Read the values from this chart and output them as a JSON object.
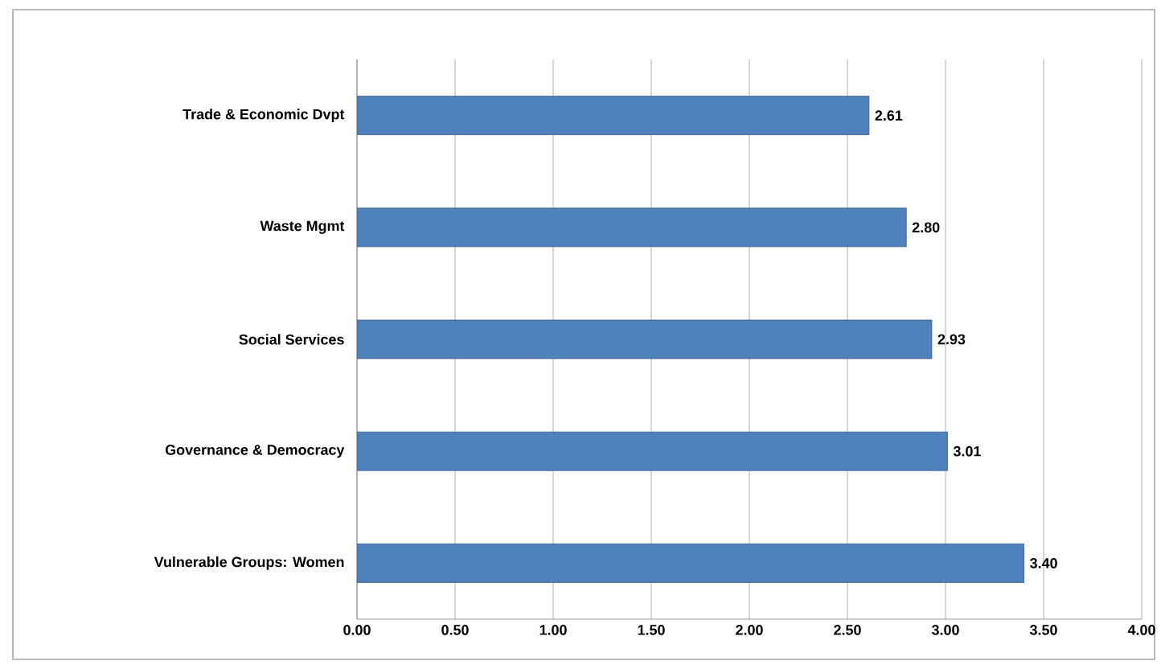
{
  "chart_data": {
    "type": "bar",
    "orientation": "horizontal",
    "categories": [
      "Trade & Economic Dvpt",
      "Waste Mgmt",
      "Social Services",
      "Governance & Democracy",
      "Vulnerable Groups: Women"
    ],
    "values": [
      2.61,
      2.8,
      2.93,
      3.01,
      3.4
    ],
    "value_labels": [
      "2.61",
      "2.80",
      "2.93",
      "3.01",
      "3.40"
    ],
    "color": "#4f81bd",
    "xlim": [
      0,
      4
    ],
    "xticks": [
      {
        "value": 0,
        "label": "0.00"
      },
      {
        "value": 0.5,
        "label": "0.50"
      },
      {
        "value": 1,
        "label": "1.00"
      },
      {
        "value": 1.5,
        "label": "1.50"
      },
      {
        "value": 2,
        "label": "2.00"
      },
      {
        "value": 2.5,
        "label": "2.50"
      },
      {
        "value": 3,
        "label": "3.00"
      },
      {
        "value": 3.5,
        "label": "3.50"
      },
      {
        "value": 4,
        "label": "4.00"
      }
    ],
    "grid": "x"
  }
}
